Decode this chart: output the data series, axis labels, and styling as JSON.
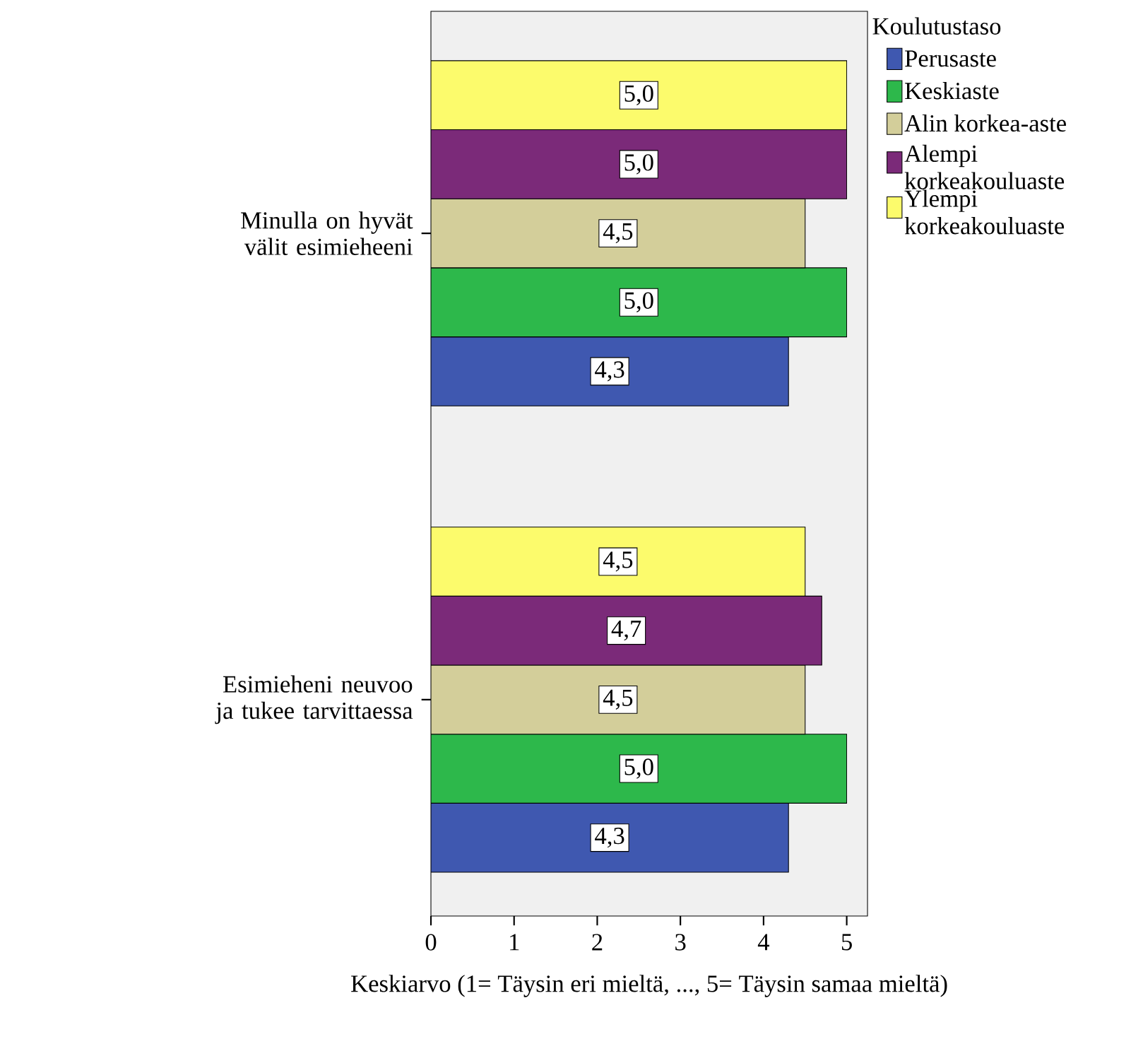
{
  "chart_data": {
    "type": "bar",
    "orientation": "horizontal",
    "categories": [
      "Minulla on hyvät välit esimieheeni",
      "Esimieheni neuvoo ja tukee tarvittaessa"
    ],
    "series": [
      {
        "name": "Perusaste",
        "color": "#3f58b0",
        "values": [
          4.3,
          4.3
        ],
        "value_labels": [
          "4,3",
          "4,3"
        ]
      },
      {
        "name": "Keskiaste",
        "color": "#2db84b",
        "values": [
          5.0,
          5.0
        ],
        "value_labels": [
          "5,0",
          "5,0"
        ]
      },
      {
        "name": "Alin korkea-aste",
        "color": "#d3ce9a",
        "values": [
          4.5,
          4.5
        ],
        "value_labels": [
          "4,5",
          "4,5"
        ]
      },
      {
        "name": "Alempi korkeakouluaste",
        "color": "#7b2a79",
        "values": [
          5.0,
          4.7
        ],
        "value_labels": [
          "5,0",
          "4,7"
        ]
      },
      {
        "name": "Ylempi korkeakouluaste",
        "color": "#fcfb6c",
        "values": [
          5.0,
          4.5
        ],
        "value_labels": [
          "5,0",
          "4,5"
        ]
      }
    ],
    "xlabel": "Keskiarvo (1= Täysin eri mieltä, ..., 5= Täysin samaa mieltä)",
    "legend_title": "Koulutustaso",
    "legend": "top right",
    "xlim": [
      0,
      5.25
    ],
    "xticks": [
      0,
      1,
      2,
      3,
      4,
      5
    ],
    "grid": false
  }
}
